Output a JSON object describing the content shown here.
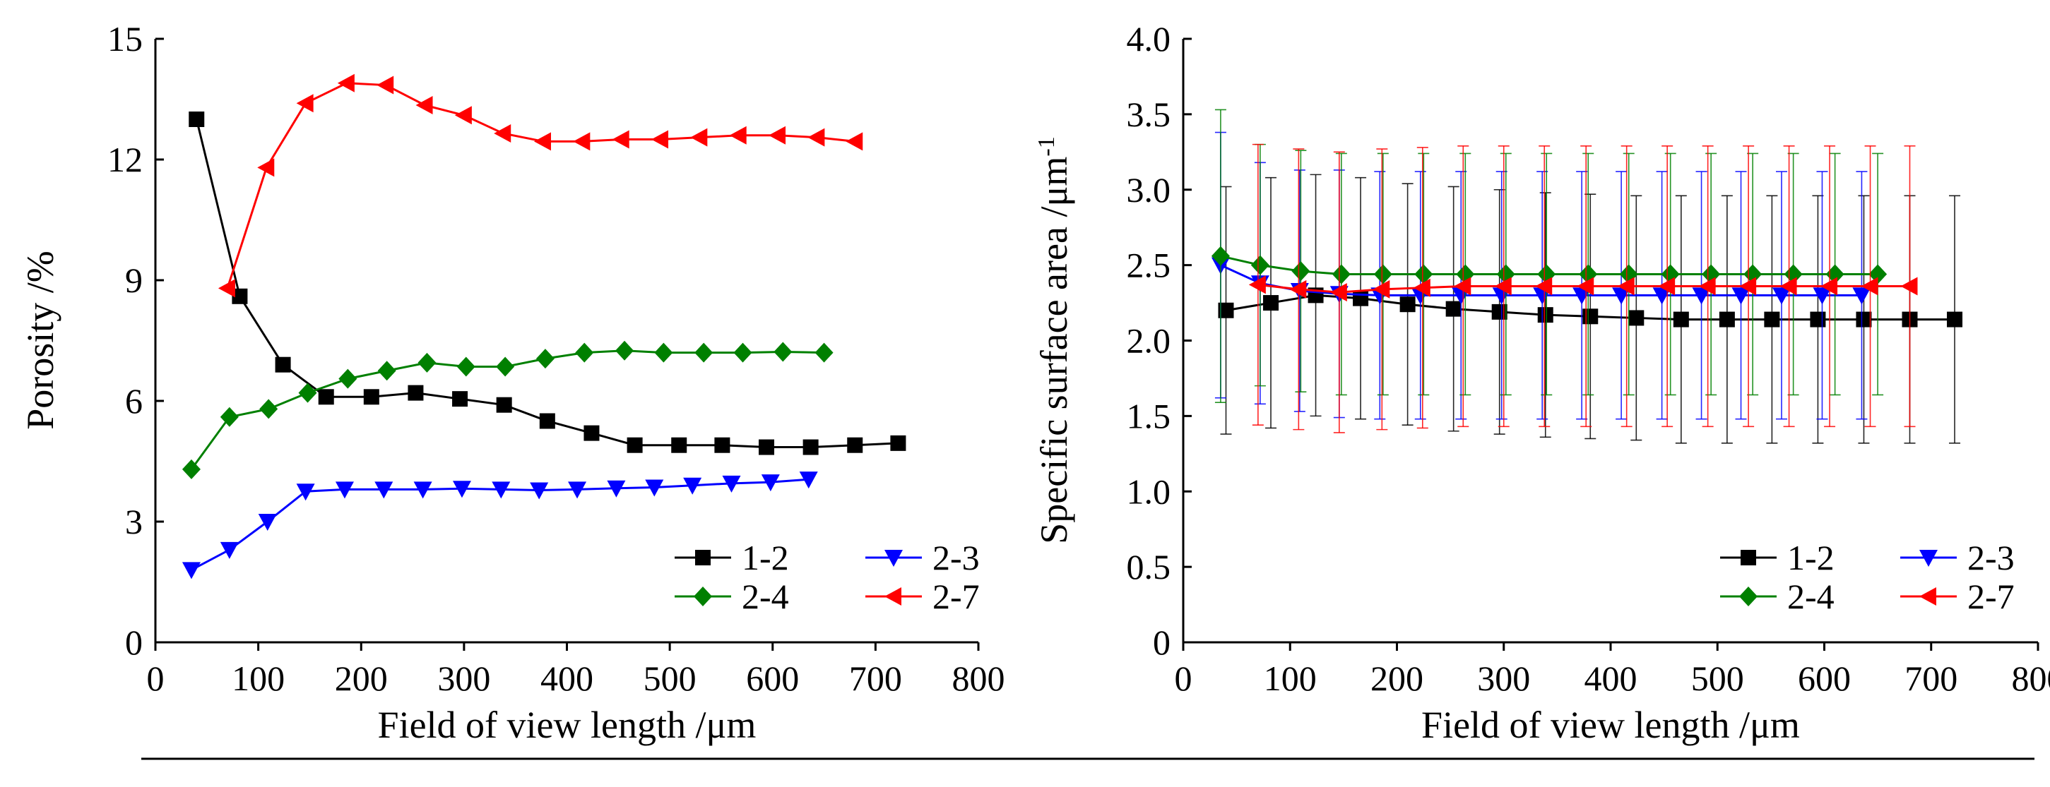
{
  "chart_data": [
    {
      "type": "line",
      "title": "",
      "xlabel": "Field of view length /μm",
      "ylabel": "Porosity /%",
      "xlim": [
        0,
        800
      ],
      "ylim": [
        0,
        15
      ],
      "xticks": [
        "0",
        "100",
        "200",
        "300",
        "400",
        "500",
        "600",
        "700",
        "800"
      ],
      "yticks": [
        "0",
        "3",
        "6",
        "9",
        "12",
        "15"
      ],
      "grid": false,
      "legend_position": "bottom-right",
      "series": [
        {
          "name": "1-2",
          "color": "#000000",
          "marker": "square",
          "x": [
            40,
            82,
            124,
            166,
            210,
            253,
            296,
            339,
            381,
            424,
            466,
            509,
            551,
            594,
            637,
            680,
            722
          ],
          "y": [
            13.0,
            8.6,
            6.9,
            6.1,
            6.1,
            6.2,
            6.05,
            5.9,
            5.5,
            5.2,
            4.9,
            4.9,
            4.9,
            4.85,
            4.85,
            4.9,
            4.95
          ]
        },
        {
          "name": "2-3",
          "color": "#0000ff",
          "marker": "triangle-down",
          "x": [
            35,
            72,
            109,
            146,
            184,
            222,
            260,
            298,
            336,
            373,
            410,
            448,
            485,
            522,
            560,
            598,
            635
          ],
          "y": [
            1.8,
            2.3,
            3.0,
            3.75,
            3.8,
            3.8,
            3.8,
            3.82,
            3.8,
            3.78,
            3.8,
            3.83,
            3.85,
            3.9,
            3.95,
            3.98,
            4.05
          ]
        },
        {
          "name": "2-4",
          "color": "#008000",
          "marker": "diamond",
          "x": [
            35,
            72,
            110,
            148,
            187,
            225,
            264,
            302,
            340,
            379,
            417,
            456,
            494,
            533,
            571,
            610,
            650
          ],
          "y": [
            4.3,
            5.6,
            5.8,
            6.2,
            6.55,
            6.75,
            6.95,
            6.85,
            6.85,
            7.05,
            7.2,
            7.25,
            7.2,
            7.2,
            7.2,
            7.22,
            7.2
          ]
        },
        {
          "name": "2-7",
          "color": "#ff0000",
          "marker": "triangle-left",
          "x": [
            70,
            108,
            146,
            186,
            224,
            262,
            300,
            338,
            377,
            415,
            453,
            491,
            529,
            567,
            605,
            643,
            680
          ],
          "y": [
            8.8,
            11.8,
            13.4,
            13.9,
            13.85,
            13.35,
            13.1,
            12.65,
            12.45,
            12.45,
            12.5,
            12.5,
            12.55,
            12.6,
            12.6,
            12.55,
            12.45
          ]
        }
      ]
    },
    {
      "type": "line",
      "title": "",
      "xlabel": "Field of view length /μm",
      "ylabel": "Specific surface area /μm",
      "ylabel_superscript": "-1",
      "xlim": [
        0,
        800
      ],
      "ylim": [
        0,
        4.0
      ],
      "xticks": [
        "0",
        "100",
        "200",
        "300",
        "400",
        "500",
        "600",
        "700",
        "800"
      ],
      "yticks": [
        "0",
        "0.5",
        "1.0",
        "1.5",
        "2.0",
        "2.5",
        "3.0",
        "3.5",
        "4.0"
      ],
      "grid": false,
      "legend_position": "bottom-right",
      "error_bars": true,
      "series": [
        {
          "name": "1-2",
          "color": "#000000",
          "marker": "square",
          "x": [
            40,
            82,
            124,
            166,
            210,
            253,
            296,
            339,
            381,
            424,
            466,
            509,
            551,
            594,
            637,
            680,
            722
          ],
          "y": [
            2.2,
            2.25,
            2.3,
            2.28,
            2.24,
            2.21,
            2.19,
            2.17,
            2.16,
            2.15,
            2.14,
            2.14,
            2.14,
            2.14,
            2.14,
            2.14,
            2.14
          ],
          "err": [
            0.82,
            0.83,
            0.8,
            0.8,
            0.8,
            0.81,
            0.81,
            0.81,
            0.81,
            0.81,
            0.82,
            0.82,
            0.82,
            0.82,
            0.82,
            0.82,
            0.82
          ]
        },
        {
          "name": "2-3",
          "color": "#0000ff",
          "marker": "triangle-down",
          "x": [
            35,
            72,
            109,
            146,
            184,
            222,
            260,
            298,
            336,
            373,
            410,
            448,
            485,
            522,
            560,
            598,
            635
          ],
          "y": [
            2.5,
            2.38,
            2.33,
            2.31,
            2.3,
            2.3,
            2.3,
            2.3,
            2.3,
            2.3,
            2.3,
            2.3,
            2.3,
            2.3,
            2.3,
            2.3,
            2.3
          ],
          "err": [
            0.88,
            0.8,
            0.8,
            0.82,
            0.82,
            0.82,
            0.82,
            0.82,
            0.82,
            0.82,
            0.82,
            0.82,
            0.82,
            0.82,
            0.82,
            0.82,
            0.82
          ]
        },
        {
          "name": "2-4",
          "color": "#008000",
          "marker": "diamond",
          "x": [
            35,
            72,
            110,
            148,
            187,
            225,
            264,
            302,
            340,
            379,
            417,
            456,
            494,
            533,
            571,
            610,
            650
          ],
          "y": [
            2.56,
            2.5,
            2.46,
            2.44,
            2.44,
            2.44,
            2.44,
            2.44,
            2.44,
            2.44,
            2.44,
            2.44,
            2.44,
            2.44,
            2.44,
            2.44,
            2.44
          ],
          "err": [
            0.97,
            0.8,
            0.8,
            0.8,
            0.8,
            0.8,
            0.8,
            0.8,
            0.8,
            0.8,
            0.8,
            0.8,
            0.8,
            0.8,
            0.8,
            0.8,
            0.8
          ]
        },
        {
          "name": "2-7",
          "color": "#ff0000",
          "marker": "triangle-left",
          "x": [
            70,
            108,
            146,
            186,
            224,
            262,
            300,
            338,
            377,
            415,
            453,
            491,
            529,
            567,
            605,
            643,
            680
          ],
          "y": [
            2.37,
            2.34,
            2.32,
            2.34,
            2.35,
            2.36,
            2.36,
            2.36,
            2.36,
            2.36,
            2.36,
            2.36,
            2.36,
            2.36,
            2.36,
            2.36,
            2.36
          ],
          "err": [
            0.93,
            0.93,
            0.93,
            0.93,
            0.93,
            0.93,
            0.93,
            0.93,
            0.93,
            0.93,
            0.93,
            0.93,
            0.93,
            0.93,
            0.93,
            0.93,
            0.93
          ]
        }
      ]
    }
  ]
}
